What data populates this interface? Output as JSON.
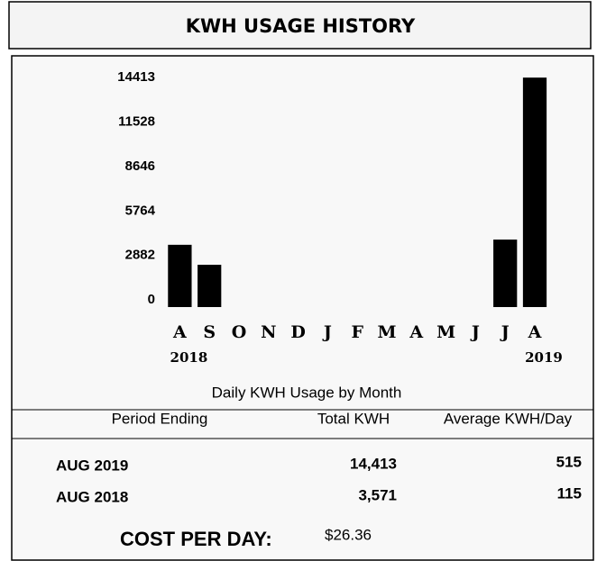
{
  "chart_data": {
    "type": "bar",
    "title": "KWH USAGE HISTORY",
    "x_label": "Daily KWH Usage by Month",
    "categories": [
      "A",
      "S",
      "O",
      "N",
      "D",
      "J",
      "F",
      "M",
      "A",
      "M",
      "J",
      "J",
      "A"
    ],
    "x_sublabels": [
      "2018",
      null,
      null,
      null,
      null,
      null,
      null,
      null,
      null,
      null,
      null,
      null,
      "2019"
    ],
    "values": [
      3571,
      2275,
      null,
      null,
      null,
      null,
      null,
      null,
      null,
      null,
      null,
      3909,
      14413
    ],
    "color": "#000000",
    "ylim": [
      0,
      16000
    ],
    "yticks": [
      0,
      2882,
      5764,
      8646,
      11528,
      14413
    ],
    "grid": false
  },
  "table": {
    "header": [
      "Period Ending",
      "Total KWH",
      "Average KWH/Day"
    ],
    "rows": [
      [
        "AUG 2019",
        "14,413",
        "515"
      ],
      [
        "AUG 2018",
        "3,571",
        "115"
      ]
    ]
  },
  "cost": {
    "label": "COST PER DAY:",
    "value": "$26.36"
  }
}
